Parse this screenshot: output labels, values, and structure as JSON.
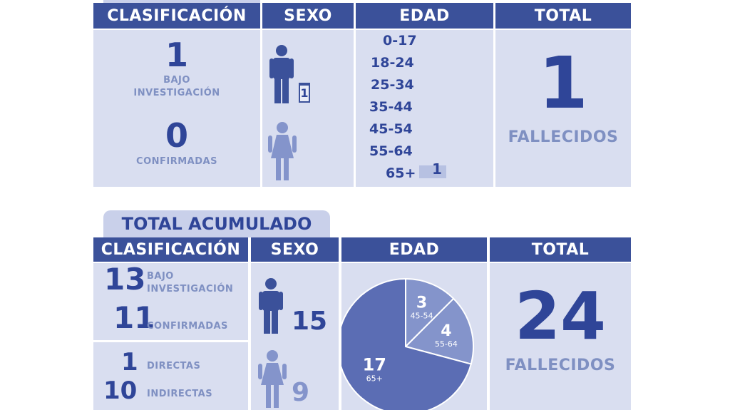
{
  "daily": {
    "headers": {
      "clasificacion": "CLASIFICACIÓN",
      "sexo": "SEXO",
      "edad": "EDAD",
      "total": "TOTAL"
    },
    "clasificacion": {
      "bajo_value": "1",
      "bajo_label_1": "BAJO",
      "bajo_label_2": "INVESTIGACIÓN",
      "confirmadas_value": "0",
      "confirmadas_label": "CONFIRMADAS"
    },
    "sexo": {
      "male_icon": "male-icon",
      "female_icon": "female-icon",
      "male_value": "1"
    },
    "edad": {
      "ranges": [
        "0-17",
        "18-24",
        "25-34",
        "35-44",
        "45-54",
        "55-64",
        "65+"
      ],
      "bar_value": "1"
    },
    "total": {
      "value": "1",
      "label": "FALLECIDOS"
    }
  },
  "acumulado": {
    "section_title": "TOTAL ACUMULADO",
    "headers": {
      "clasificacion": "CLASIFICACIÓN",
      "sexo": "SEXO",
      "edad": "EDAD",
      "total": "TOTAL"
    },
    "clasificacion": {
      "bajo_value": "13",
      "bajo_label_1": "BAJO",
      "bajo_label_2": "INVESTIGACIÓN",
      "confirmadas_value": "11",
      "confirmadas_label": "CONFIRMADAS",
      "directas_value": "1",
      "directas_label": "DIRECTAS",
      "indirectas_value": "10",
      "indirectas_label": "INDIRECTAS"
    },
    "sexo": {
      "male_icon": "male-icon",
      "female_icon": "female-icon",
      "male_value": "15",
      "female_value": "9"
    },
    "total": {
      "value": "24",
      "label": "FALLECIDOS"
    }
  },
  "colors": {
    "header": "#3b519a",
    "cell": "#d9def0",
    "text": "#2f4598",
    "label": "#7f90c2"
  },
  "chart_data": {
    "type": "pie",
    "slices": [
      {
        "value": 3,
        "label": "45-54"
      },
      {
        "value": 4,
        "label": "55-64"
      },
      {
        "value": 17,
        "label": "65+"
      }
    ],
    "colors": [
      "#8494cb",
      "#8494cb",
      "#5b6db4"
    ]
  }
}
